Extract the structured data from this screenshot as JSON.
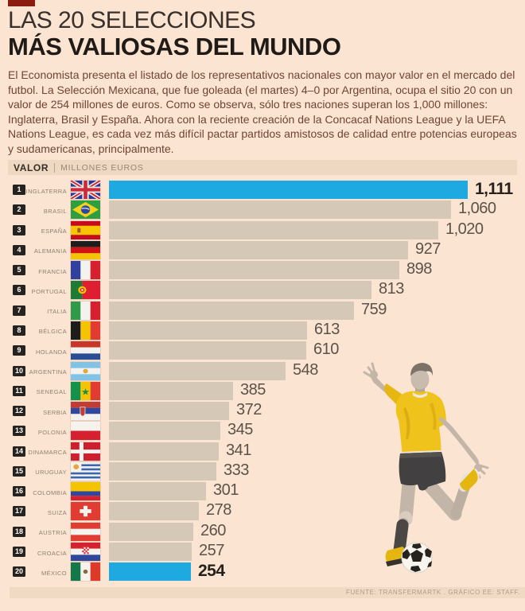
{
  "header": {
    "title_line1": "LAS 20 SELECCIONES",
    "title_line2": "MÁS VALIOSAS DEL MUNDO",
    "intro": "El Economista presenta el listado de los representativos nacionales con mayor valor en el mercado del futbol. La Selección Mexicana, que fue goleada (el martes) 4–0 por Argentina, ocupa el sitio 20 con un valor de 254 millones de euros. Como se observa, sólo tres naciones superan los 1,000 millones: Inglaterra, Brasil y España. Ahora con la reciente creación de la Concacaf Nations League y la UEFA Nations League, es cada vez más difícil pactar partidos amistosos de calidad entre potencias europeas y sudamericanas, principalmente."
  },
  "value_header": {
    "label": "VALOR",
    "units": "MILLONES EUROS"
  },
  "footer": {
    "source": "FUENTE: TRANSFERMARTK . GRÁFICO EE: STAFF."
  },
  "colors": {
    "background": "#fbe4d1",
    "accent_red": "#8c1c10",
    "accent_blue": "#1fa9e1",
    "bar_tan": "#d5c8b6",
    "badge": "#262220",
    "header_strip": "#eed8c1"
  },
  "chart_data": {
    "type": "bar",
    "orientation": "horizontal",
    "title": "LAS 20 SELECCIONES MÁS VALIOSAS DEL MUNDO",
    "xlabel": "VALOR (MILLONES EUROS)",
    "ylabel": "",
    "xlim": [
      0,
      1111
    ],
    "grid": false,
    "legend": false,
    "rows": [
      {
        "rank": "1",
        "country": "INGLATERRA",
        "flag": "uk",
        "value": 1111,
        "display": "1,111",
        "highlight": true
      },
      {
        "rank": "2",
        "country": "BRASIL",
        "flag": "brazil",
        "value": 1060,
        "display": "1,060",
        "highlight": false
      },
      {
        "rank": "3",
        "country": "ESPAÑA",
        "flag": "spain",
        "value": 1020,
        "display": "1,020",
        "highlight": false
      },
      {
        "rank": "4",
        "country": "ALEMANIA",
        "flag": "germany",
        "value": 927,
        "display": "927",
        "highlight": false
      },
      {
        "rank": "5",
        "country": "FRANCIA",
        "flag": "france",
        "value": 898,
        "display": "898",
        "highlight": false
      },
      {
        "rank": "6",
        "country": "PORTUGAL",
        "flag": "portugal",
        "value": 813,
        "display": "813",
        "highlight": false
      },
      {
        "rank": "7",
        "country": "ITALIA",
        "flag": "italy",
        "value": 759,
        "display": "759",
        "highlight": false
      },
      {
        "rank": "8",
        "country": "BÉLGICA",
        "flag": "belgium",
        "value": 613,
        "display": "613",
        "highlight": false
      },
      {
        "rank": "9",
        "country": "HOLANDA",
        "flag": "netherlands",
        "value": 610,
        "display": "610",
        "highlight": false
      },
      {
        "rank": "10",
        "country": "ARGENTINA",
        "flag": "argentina",
        "value": 548,
        "display": "548",
        "highlight": false
      },
      {
        "rank": "11",
        "country": "SENEGAL",
        "flag": "senegal",
        "value": 385,
        "display": "385",
        "highlight": false
      },
      {
        "rank": "12",
        "country": "SERBIA",
        "flag": "serbia",
        "value": 372,
        "display": "372",
        "highlight": false
      },
      {
        "rank": "13",
        "country": "POLONIA",
        "flag": "poland",
        "value": 345,
        "display": "345",
        "highlight": false
      },
      {
        "rank": "14",
        "country": "DINAMARCA",
        "flag": "denmark",
        "value": 341,
        "display": "341",
        "highlight": false
      },
      {
        "rank": "15",
        "country": "URUGUAY",
        "flag": "uruguay",
        "value": 333,
        "display": "333",
        "highlight": false
      },
      {
        "rank": "16",
        "country": "COLOMBIA",
        "flag": "colombia",
        "value": 301,
        "display": "301",
        "highlight": false
      },
      {
        "rank": "17",
        "country": "SUIZA",
        "flag": "switzerland",
        "value": 278,
        "display": "278",
        "highlight": false
      },
      {
        "rank": "18",
        "country": "AUSTRIA",
        "flag": "austria",
        "value": 260,
        "display": "260",
        "highlight": false
      },
      {
        "rank": "19",
        "country": "CROACIA",
        "flag": "croatia",
        "value": 257,
        "display": "257",
        "highlight": false
      },
      {
        "rank": "20",
        "country": "MÉXICO",
        "flag": "mexico",
        "value": 254,
        "display": "254",
        "highlight": true
      }
    ]
  }
}
